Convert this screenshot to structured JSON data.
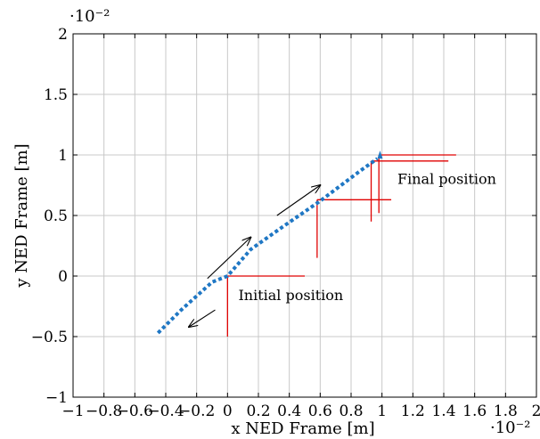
{
  "chart_data": {
    "type": "line",
    "title": "",
    "xlabel": "x NED Frame [m]",
    "ylabel": "y NED Frame [m]",
    "x_exponent_label": "·10⁻²",
    "y_exponent_label": "·10⁻²",
    "xlim": [
      -1,
      2
    ],
    "ylim": [
      -1,
      2
    ],
    "x_ticks": [
      -1,
      -0.8,
      -0.6,
      -0.4,
      -0.2,
      0,
      0.2,
      0.4,
      0.6,
      0.8,
      1,
      1.2,
      1.4,
      1.6,
      1.8,
      2
    ],
    "x_tick_labels": [
      "−1",
      "−0.8",
      "−0.6",
      "−0.4",
      "−0.2",
      "0",
      "0.2",
      "0.4",
      "0.6",
      "0.8",
      "1",
      "1.2",
      "1.4",
      "1.6",
      "1.8",
      "2"
    ],
    "y_ticks": [
      -1,
      -0.5,
      0,
      0.5,
      1,
      1.5,
      2
    ],
    "y_tick_labels": [
      "−1",
      "−0.5",
      "0",
      "0.5",
      "1",
      "1.5",
      "2"
    ],
    "grid": true,
    "series": [
      {
        "color": "#1f77c4",
        "style": "dotted",
        "points": [
          {
            "x": -0.45,
            "y": -0.47
          },
          {
            "x": -0.3,
            "y": -0.28
          },
          {
            "x": -0.1,
            "y": -0.05
          },
          {
            "x": 0.0,
            "y": 0.0
          },
          {
            "x": 0.15,
            "y": 0.22
          },
          {
            "x": 0.35,
            "y": 0.4
          },
          {
            "x": 0.6,
            "y": 0.62
          },
          {
            "x": 0.85,
            "y": 0.86
          },
          {
            "x": 0.97,
            "y": 0.97
          }
        ]
      }
    ],
    "frame_axes": [
      {
        "x": 0.0,
        "y": 0.0,
        "dx": 0.5,
        "dy": -0.5,
        "color": "#e00000"
      },
      {
        "x": 0.58,
        "y": 0.63,
        "dx": 0.48,
        "dy": -0.48,
        "color": "#e00000"
      },
      {
        "x": 0.93,
        "y": 0.95,
        "dx": 0.5,
        "dy": -0.5,
        "color": "#e00000"
      },
      {
        "x": 0.98,
        "y": 1.0,
        "dx": 0.5,
        "dy": -0.48,
        "color": "#e00000"
      }
    ],
    "arrows": [
      {
        "x1": -0.13,
        "y1": -0.02,
        "x2": 0.15,
        "y2": 0.32
      },
      {
        "x1": 0.32,
        "y1": 0.5,
        "x2": 0.6,
        "y2": 0.75
      },
      {
        "x1": -0.08,
        "y1": -0.28,
        "x2": -0.25,
        "y2": -0.42
      }
    ],
    "annotations": [
      {
        "text": "Initial position",
        "x": 0.07,
        "y": -0.2
      },
      {
        "text": "Final position",
        "x": 1.1,
        "y": 0.76
      }
    ]
  }
}
